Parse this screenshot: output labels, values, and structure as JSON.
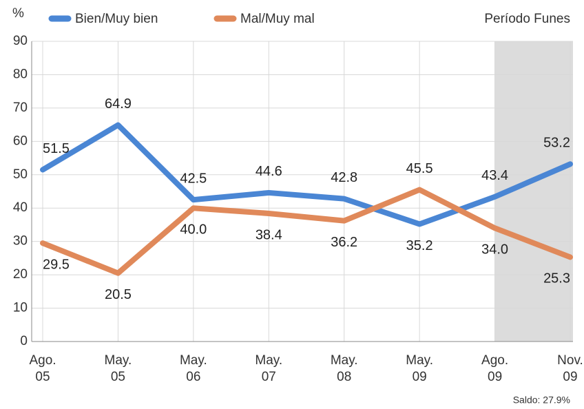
{
  "chart_data": {
    "type": "line",
    "y_label": "%",
    "annotation": "Período Funes",
    "footnote": "Saldo: 27.9%",
    "categories": [
      "Ago.\n05",
      "May.\n05",
      "May.\n06",
      "May.\n07",
      "May.\n08",
      "May.\n09",
      "Ago.\n09",
      "Nov.\n09"
    ],
    "series": [
      {
        "name": "Bien/Muy bien",
        "color": "#4a86d4",
        "values": [
          51.5,
          64.9,
          42.5,
          44.6,
          42.8,
          35.2,
          43.4,
          53.2
        ],
        "value_labels": [
          "51.5",
          "64.9",
          "42.5",
          "44.6",
          "42.8",
          "35.2",
          "43.4",
          "53.2"
        ]
      },
      {
        "name": "Mal/Muy mal",
        "color": "#e0895a",
        "values": [
          29.5,
          20.5,
          40.0,
          38.4,
          36.2,
          45.5,
          34.0,
          25.3
        ],
        "value_labels": [
          "29.5",
          "20.5",
          "40.0",
          "38.4",
          "36.2",
          "45.5",
          "34.0",
          "25.3"
        ]
      }
    ],
    "ylim": [
      0,
      90
    ],
    "yticks": [
      0,
      10,
      20,
      30,
      40,
      50,
      60,
      70,
      80,
      90
    ],
    "grid": true
  }
}
